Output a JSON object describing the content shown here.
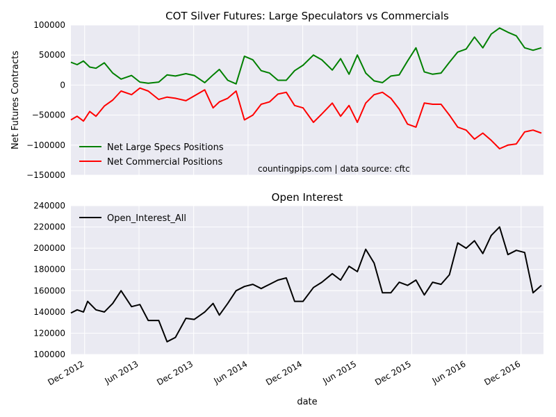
{
  "chart_data": [
    {
      "type": "line",
      "title": "COT Silver Futures: Large Speculators vs Commercials",
      "xlabel": "",
      "ylabel": "Net Futures Contracts",
      "ylim": [
        -150000,
        100000
      ],
      "yticks": [
        100000,
        50000,
        0,
        -50000,
        -100000,
        -150000
      ],
      "ytick_labels": [
        "100000",
        "50000",
        "0",
        "−50000",
        "−100000",
        "−150000"
      ],
      "xlim": [
        "2012-10-16",
        "2017-02-14"
      ],
      "grid": true,
      "legend_position": "lower-left",
      "annotation": "countingpips.com | data source: cftc",
      "series": [
        {
          "name": "Net Large Specs Positions",
          "color": "#008000",
          "x": [
            "2012-10-16",
            "2012-11-06",
            "2012-11-27",
            "2012-12-18",
            "2013-01-08",
            "2013-02-05",
            "2013-03-05",
            "2013-04-02",
            "2013-05-07",
            "2013-06-04",
            "2013-07-02",
            "2013-08-06",
            "2013-09-03",
            "2013-10-01",
            "2013-11-05",
            "2013-12-03",
            "2014-01-07",
            "2014-02-04",
            "2014-02-25",
            "2014-03-25",
            "2014-04-22",
            "2014-05-20",
            "2014-06-17",
            "2014-07-15",
            "2014-08-12",
            "2014-09-09",
            "2014-10-07",
            "2014-11-04",
            "2014-12-02",
            "2015-01-06",
            "2015-02-03",
            "2015-03-10",
            "2015-04-07",
            "2015-05-05",
            "2015-06-02",
            "2015-06-30",
            "2015-07-28",
            "2015-08-25",
            "2015-09-22",
            "2015-10-20",
            "2015-11-17",
            "2015-12-15",
            "2016-01-12",
            "2016-02-09",
            "2016-03-08",
            "2016-04-05",
            "2016-05-03",
            "2016-05-31",
            "2016-06-28",
            "2016-07-26",
            "2016-08-23",
            "2016-09-20",
            "2016-10-18",
            "2016-11-15",
            "2016-12-13",
            "2017-01-10",
            "2017-02-07"
          ],
          "y": [
            38000,
            34000,
            40000,
            30000,
            28000,
            37000,
            20000,
            10000,
            16000,
            5000,
            3000,
            5000,
            17000,
            15000,
            19000,
            16000,
            4000,
            17000,
            26000,
            8000,
            2000,
            48000,
            42000,
            24000,
            20000,
            8000,
            8000,
            24000,
            33000,
            50000,
            42000,
            25000,
            44000,
            18000,
            50000,
            20000,
            7000,
            4000,
            15000,
            17000,
            40000,
            62000,
            22000,
            18000,
            20000,
            38000,
            55000,
            60000,
            80000,
            62000,
            85000,
            95000,
            88000,
            82000,
            62000,
            58000,
            62000
          ]
        },
        {
          "name": "Net Commercial Positions",
          "color": "#ff0000",
          "x": [
            "2012-10-16",
            "2012-11-06",
            "2012-11-27",
            "2012-12-18",
            "2013-01-08",
            "2013-02-05",
            "2013-03-05",
            "2013-04-02",
            "2013-05-07",
            "2013-06-04",
            "2013-07-02",
            "2013-08-06",
            "2013-09-03",
            "2013-10-01",
            "2013-11-05",
            "2013-12-03",
            "2014-01-07",
            "2014-02-04",
            "2014-02-25",
            "2014-03-25",
            "2014-04-22",
            "2014-05-20",
            "2014-06-17",
            "2014-07-15",
            "2014-08-12",
            "2014-09-09",
            "2014-10-07",
            "2014-11-04",
            "2014-12-02",
            "2015-01-06",
            "2015-02-03",
            "2015-03-10",
            "2015-04-07",
            "2015-05-05",
            "2015-06-02",
            "2015-06-30",
            "2015-07-28",
            "2015-08-25",
            "2015-09-22",
            "2015-10-20",
            "2015-11-17",
            "2015-12-15",
            "2016-01-12",
            "2016-02-09",
            "2016-03-08",
            "2016-04-05",
            "2016-05-03",
            "2016-05-31",
            "2016-06-28",
            "2016-07-26",
            "2016-08-23",
            "2016-09-20",
            "2016-10-18",
            "2016-11-15",
            "2016-12-13",
            "2017-01-10",
            "2017-02-07"
          ],
          "y": [
            -58000,
            -52000,
            -60000,
            -44000,
            -52000,
            -35000,
            -25000,
            -10000,
            -16000,
            -5000,
            -10000,
            -24000,
            -20000,
            -22000,
            -26000,
            -18000,
            -8000,
            -38000,
            -28000,
            -22000,
            -10000,
            -58000,
            -50000,
            -32000,
            -28000,
            -15000,
            -12000,
            -34000,
            -38000,
            -62000,
            -48000,
            -30000,
            -52000,
            -34000,
            -62000,
            -30000,
            -16000,
            -12000,
            -22000,
            -40000,
            -65000,
            -70000,
            -30000,
            -32000,
            -32000,
            -50000,
            -70000,
            -75000,
            -90000,
            -80000,
            -92000,
            -106000,
            -100000,
            -98000,
            -78000,
            -75000,
            -80000
          ]
        }
      ]
    },
    {
      "type": "line",
      "title": "Open Interest",
      "xlabel": "date",
      "ylabel": "",
      "ylim": [
        100000,
        240000
      ],
      "yticks": [
        100000,
        120000,
        140000,
        160000,
        180000,
        200000,
        220000,
        240000
      ],
      "ytick_labels": [
        "100000",
        "120000",
        "140000",
        "160000",
        "180000",
        "200000",
        "220000",
        "240000"
      ],
      "xlim": [
        "2012-10-16",
        "2017-02-14"
      ],
      "xticks": [
        "2012-12-01",
        "2013-06-01",
        "2013-12-01",
        "2014-06-01",
        "2014-12-01",
        "2015-06-01",
        "2015-12-01",
        "2016-06-01",
        "2016-12-01"
      ],
      "xtick_labels": [
        "Dec 2012",
        "Jun 2013",
        "Dec 2013",
        "Jun 2014",
        "Dec 2014",
        "Jun 2015",
        "Dec 2015",
        "Jun 2016",
        "Dec 2016"
      ],
      "grid": true,
      "legend_position": "top-left",
      "series": [
        {
          "name": "Open_Interest_All",
          "color": "#000000",
          "x": [
            "2012-10-16",
            "2012-11-06",
            "2012-11-27",
            "2012-12-11",
            "2013-01-08",
            "2013-02-05",
            "2013-03-05",
            "2013-04-02",
            "2013-05-07",
            "2013-06-04",
            "2013-07-02",
            "2013-08-06",
            "2013-09-03",
            "2013-10-01",
            "2013-11-05",
            "2013-12-03",
            "2014-01-07",
            "2014-02-04",
            "2014-02-25",
            "2014-03-25",
            "2014-04-22",
            "2014-05-20",
            "2014-06-17",
            "2014-07-15",
            "2014-08-12",
            "2014-09-09",
            "2014-10-07",
            "2014-11-04",
            "2014-12-02",
            "2015-01-06",
            "2015-02-03",
            "2015-03-10",
            "2015-04-07",
            "2015-05-05",
            "2015-06-02",
            "2015-06-30",
            "2015-07-28",
            "2015-08-25",
            "2015-09-22",
            "2015-10-20",
            "2015-11-17",
            "2015-12-15",
            "2016-01-12",
            "2016-02-09",
            "2016-03-08",
            "2016-04-05",
            "2016-05-03",
            "2016-05-31",
            "2016-06-28",
            "2016-07-26",
            "2016-08-23",
            "2016-09-20",
            "2016-10-18",
            "2016-11-15",
            "2016-12-13",
            "2017-01-10",
            "2017-02-07"
          ],
          "y": [
            139000,
            142000,
            140000,
            150000,
            142000,
            140000,
            148000,
            160000,
            145000,
            147000,
            132000,
            132000,
            112000,
            116000,
            134000,
            133000,
            140000,
            148000,
            137000,
            148000,
            160000,
            164000,
            166000,
            162000,
            166000,
            170000,
            172000,
            150000,
            150000,
            163000,
            168000,
            176000,
            170000,
            183000,
            178000,
            199000,
            186000,
            158000,
            158000,
            168000,
            165000,
            170000,
            156000,
            168000,
            166000,
            175000,
            205000,
            200000,
            207000,
            195000,
            212000,
            220000,
            194000,
            198000,
            196000,
            158000,
            165000
          ]
        }
      ]
    }
  ]
}
